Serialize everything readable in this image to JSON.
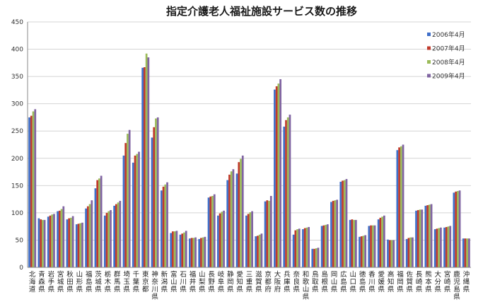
{
  "chart_data": {
    "type": "bar",
    "title": "指定介護老人福祉施設サービス数の推移",
    "ylim": [
      0,
      450
    ],
    "yticks": [
      0,
      50,
      100,
      150,
      200,
      250,
      300,
      350,
      400,
      450
    ],
    "grid": true,
    "legend_position": "top-right",
    "categories": [
      "北海道",
      "青森県",
      "岩手県",
      "宮城県",
      "秋田県",
      "山形県",
      "福島県",
      "茨城県",
      "栃木県",
      "群馬県",
      "埼玉県",
      "千葉県",
      "東京都",
      "神奈川県",
      "新潟県",
      "富山県",
      "石川県",
      "福井県",
      "山梨県",
      "長野県",
      "岐阜県",
      "静岡県",
      "愛知県",
      "三重県",
      "滋賀県",
      "京都府",
      "大阪府",
      "兵庫県",
      "奈良県",
      "和歌山県",
      "鳥取県",
      "島根県",
      "岡山県",
      "広島県",
      "山口県",
      "徳島県",
      "香川県",
      "愛媛県",
      "高知県",
      "福岡県",
      "佐賀県",
      "長崎県",
      "熊本県",
      "大分県",
      "宮崎県",
      "鹿児島県",
      "沖縄県"
    ],
    "series": [
      {
        "name": "2006年4月",
        "color": "#3f6fc9",
        "values": [
          275,
          90,
          93,
          103,
          88,
          79,
          108,
          145,
          95,
          113,
          205,
          192,
          366,
          238,
          141,
          63,
          60,
          53,
          52,
          128,
          95,
          160,
          172,
          95,
          57,
          121,
          326,
          258,
          60,
          70,
          34,
          76,
          120,
          157,
          87,
          56,
          76,
          88,
          51,
          215,
          52,
          104,
          113,
          70,
          73,
          137,
          53
        ]
      },
      {
        "name": "2007年4月",
        "color": "#c0392b",
        "values": [
          278,
          88,
          95,
          104,
          90,
          80,
          112,
          160,
          100,
          116,
          228,
          205,
          367,
          257,
          148,
          66,
          62,
          54,
          54,
          130,
          99,
          170,
          193,
          98,
          58,
          123,
          332,
          270,
          68,
          72,
          34,
          77,
          122,
          159,
          88,
          57,
          77,
          91,
          50,
          220,
          54,
          105,
          114,
          71,
          74,
          139,
          53
        ]
      },
      {
        "name": "2008年4月",
        "color": "#9bbb59",
        "values": [
          286,
          87,
          97,
          107,
          91,
          81,
          116,
          163,
          103,
          119,
          245,
          208,
          392,
          273,
          152,
          66,
          64,
          54,
          55,
          131,
          102,
          176,
          199,
          101,
          60,
          122,
          337,
          275,
          70,
          73,
          35,
          78,
          123,
          160,
          87,
          58,
          77,
          93,
          50,
          222,
          55,
          106,
          115,
          72,
          75,
          140,
          53
        ]
      },
      {
        "name": "2009年4月",
        "color": "#8064a2",
        "values": [
          290,
          87,
          98,
          112,
          94,
          82,
          123,
          168,
          105,
          122,
          252,
          212,
          385,
          275,
          156,
          67,
          67,
          55,
          56,
          134,
          104,
          180,
          205,
          103,
          62,
          131,
          345,
          280,
          71,
          74,
          36,
          79,
          124,
          162,
          87,
          59,
          77,
          95,
          50,
          225,
          55,
          106,
          116,
          73,
          76,
          141,
          53
        ]
      }
    ]
  }
}
